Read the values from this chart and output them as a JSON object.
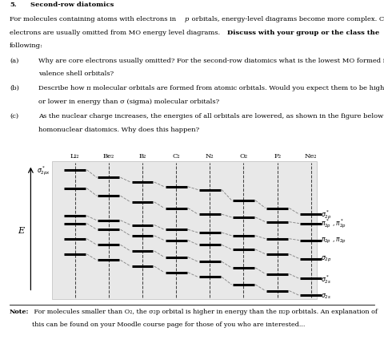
{
  "molecules": [
    "Li₂",
    "Be₂",
    "B₂",
    "C₂",
    "N₂",
    "O₂",
    "F₂",
    "Ne₂"
  ],
  "level_keys": [
    "sigma_star_2p",
    "pi_star_2p",
    "pi_2p",
    "sigma_2p",
    "sigma_star_2s",
    "sigma_2s"
  ],
  "right_labels": [
    "σ*₂p",
    "π*₂p , π*₂p",
    "π₂p , π₂p",
    "σ₂p",
    "σ*₂s",
    "σ₂s"
  ],
  "left_label_sigma": "σ₂px",
  "left_label_E": "E",
  "level_data": {
    "sigma_star_2p": [
      9.0,
      8.5,
      8.2,
      7.9,
      7.7,
      7.0,
      6.5,
      6.1
    ],
    "pi_star_2p": [
      7.8,
      7.3,
      6.9,
      6.5,
      6.1,
      5.9,
      5.6,
      5.5
    ],
    "pi_2p": [
      6.0,
      5.7,
      5.4,
      5.1,
      4.9,
      4.7,
      4.5,
      4.4
    ],
    "sigma_2p": [
      5.5,
      5.1,
      4.7,
      4.4,
      4.1,
      3.8,
      3.5,
      3.2
    ],
    "sigma_star_2s": [
      4.5,
      4.1,
      3.7,
      3.3,
      3.0,
      2.6,
      2.2,
      1.9
    ],
    "sigma_2s": [
      3.5,
      3.1,
      2.7,
      2.3,
      2.0,
      1.5,
      1.1,
      0.8
    ]
  },
  "bg_color": "#e8e8e8",
  "fig_width": 4.8,
  "fig_height": 4.35,
  "dpi": 100,
  "text_fontsize": 6.0,
  "note_fontsize": 5.8
}
